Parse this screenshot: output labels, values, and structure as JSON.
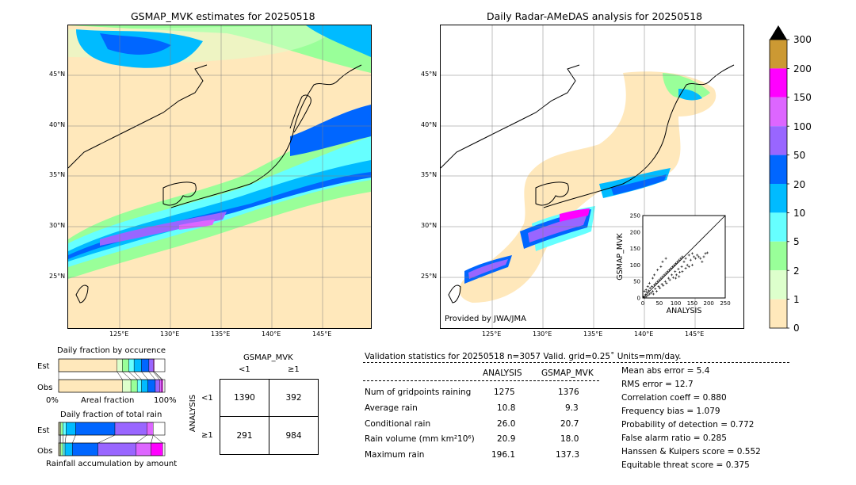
{
  "left_map": {
    "title": "GSMAP_MVK estimates for 20250518",
    "lat_labels": [
      "45°N",
      "40°N",
      "35°N",
      "30°N",
      "25°N"
    ],
    "lon_labels": [
      "125°E",
      "130°E",
      "135°E",
      "140°E",
      "145°E"
    ]
  },
  "right_map": {
    "title": "Daily Radar-AMeDAS analysis for 20250518",
    "lat_labels": [
      "45°N",
      "40°N",
      "35°N",
      "30°N",
      "25°N"
    ],
    "lon_labels": [
      "125°E",
      "130°E",
      "135°E",
      "140°E",
      "145°E"
    ],
    "credit": "Provided by JWA/JMA"
  },
  "colorbar": {
    "ticks": [
      "300",
      "200",
      "150",
      "100",
      "50",
      "20",
      "10",
      "5",
      "2",
      "1",
      "0"
    ],
    "colors": [
      "#cc9933",
      "#ff00ff",
      "#dd66ff",
      "#9966ff",
      "#0066ff",
      "#00bbff",
      "#66ffff",
      "#99ff99",
      "#ddffcc",
      "#ffe8bb"
    ]
  },
  "chart_data": [
    {
      "type": "scatter",
      "xlabel": "ANALYSIS",
      "ylabel": "GSMAP_MVK",
      "xlim": [
        0,
        250
      ],
      "ylim": [
        0,
        250
      ],
      "xticks": [
        "0",
        "25",
        "50",
        "75",
        "100",
        "125",
        "150",
        "175",
        "200",
        "225",
        "250"
      ],
      "yticks": [
        "0",
        "25",
        "50",
        "75",
        "100",
        "125",
        "150",
        "175",
        "200",
        "225",
        "250"
      ],
      "points": [
        [
          2,
          3
        ],
        [
          5,
          1
        ],
        [
          8,
          10
        ],
        [
          10,
          4
        ],
        [
          12,
          18
        ],
        [
          15,
          8
        ],
        [
          18,
          22
        ],
        [
          20,
          12
        ],
        [
          22,
          30
        ],
        [
          25,
          15
        ],
        [
          28,
          35
        ],
        [
          30,
          20
        ],
        [
          32,
          12
        ],
        [
          35,
          40
        ],
        [
          38,
          28
        ],
        [
          40,
          45
        ],
        [
          42,
          20
        ],
        [
          45,
          50
        ],
        [
          48,
          35
        ],
        [
          50,
          55
        ],
        [
          52,
          30
        ],
        [
          55,
          60
        ],
        [
          58,
          42
        ],
        [
          60,
          65
        ],
        [
          62,
          38
        ],
        [
          65,
          70
        ],
        [
          68,
          50
        ],
        [
          70,
          75
        ],
        [
          72,
          45
        ],
        [
          75,
          80
        ],
        [
          78,
          60
        ],
        [
          80,
          85
        ],
        [
          82,
          55
        ],
        [
          85,
          90
        ],
        [
          88,
          70
        ],
        [
          90,
          95
        ],
        [
          92,
          62
        ],
        [
          95,
          100
        ],
        [
          98,
          80
        ],
        [
          100,
          105
        ],
        [
          102,
          70
        ],
        [
          105,
          110
        ],
        [
          108,
          88
        ],
        [
          110,
          115
        ],
        [
          112,
          78
        ],
        [
          115,
          120
        ],
        [
          118,
          95
        ],
        [
          120,
          125
        ],
        [
          125,
          110
        ],
        [
          130,
          120
        ],
        [
          135,
          100
        ],
        [
          140,
          130
        ],
        [
          145,
          115
        ],
        [
          150,
          135
        ],
        [
          155,
          125
        ],
        [
          160,
          120
        ],
        [
          165,
          130
        ],
        [
          170,
          125
        ],
        [
          175,
          120
        ],
        [
          180,
          110
        ],
        [
          185,
          125
        ],
        [
          190,
          135
        ],
        [
          196,
          137
        ],
        [
          60,
          110
        ],
        [
          70,
          120
        ],
        [
          45,
          85
        ],
        [
          55,
          95
        ],
        [
          35,
          70
        ],
        [
          30,
          60
        ],
        [
          20,
          45
        ],
        [
          15,
          35
        ],
        [
          10,
          25
        ],
        [
          5,
          20
        ],
        [
          100,
          60
        ],
        [
          110,
          65
        ],
        [
          120,
          80
        ],
        [
          130,
          90
        ],
        [
          140,
          95
        ],
        [
          150,
          100
        ]
      ]
    },
    {
      "type": "bar",
      "title": "Daily fraction by occurence",
      "categories": [
        "Est",
        "Obs"
      ],
      "xlabels": [
        "0%",
        "Areal fraction",
        "100%"
      ],
      "series": [
        {
          "color": "#ffe8bb",
          "values": [
            0.55,
            0.6
          ]
        },
        {
          "color": "#ddffcc",
          "values": [
            0.05,
            0.08
          ]
        },
        {
          "color": "#99ff99",
          "values": [
            0.06,
            0.06
          ]
        },
        {
          "color": "#66ffff",
          "values": [
            0.05,
            0.04
          ]
        },
        {
          "color": "#00bbff",
          "values": [
            0.07,
            0.06
          ]
        },
        {
          "color": "#0066ff",
          "values": [
            0.07,
            0.07
          ]
        },
        {
          "color": "#9966ff",
          "values": [
            0.04,
            0.04
          ]
        },
        {
          "color": "#dd66ff",
          "values": [
            0.01,
            0.02
          ]
        },
        {
          "color": "#ff00ff",
          "values": [
            0.0,
            0.01
          ]
        }
      ]
    },
    {
      "type": "bar",
      "title": "Daily fraction of total rain",
      "categories": [
        "Est",
        "Obs"
      ],
      "xlabels": [
        "Rainfall accumulation by amount"
      ],
      "series": [
        {
          "color": "#ffe8bb",
          "values": [
            0.01,
            0.01
          ]
        },
        {
          "color": "#ddffcc",
          "values": [
            0.01,
            0.01
          ]
        },
        {
          "color": "#99ff99",
          "values": [
            0.02,
            0.02
          ]
        },
        {
          "color": "#66ffff",
          "values": [
            0.03,
            0.02
          ]
        },
        {
          "color": "#00bbff",
          "values": [
            0.09,
            0.07
          ]
        },
        {
          "color": "#0066ff",
          "values": [
            0.37,
            0.24
          ]
        },
        {
          "color": "#9966ff",
          "values": [
            0.3,
            0.36
          ]
        },
        {
          "color": "#dd66ff",
          "values": [
            0.06,
            0.14
          ]
        },
        {
          "color": "#ff00ff",
          "values": [
            0.0,
            0.11
          ]
        }
      ]
    }
  ],
  "contingency": {
    "title": "GSMAP_MVK",
    "col_headers": [
      "<1",
      "≥1"
    ],
    "row_label": "ANALYSIS",
    "row_headers": [
      "<1",
      "≥1"
    ],
    "cells": [
      [
        "1390",
        "392"
      ],
      [
        "291",
        "984"
      ]
    ]
  },
  "validation": {
    "header": "Validation statistics for 20250518  n=3057 Valid. grid=0.25˚ Units=mm/day.",
    "col_analysis": "ANALYSIS",
    "col_gsmap": "GSMAP_MVK",
    "rows": [
      {
        "label": "Num of gridpoints raining",
        "analysis": "1275",
        "gsmap": "1376"
      },
      {
        "label": "Average rain",
        "analysis": "10.8",
        "gsmap": "9.3"
      },
      {
        "label": "Conditional rain",
        "analysis": "26.0",
        "gsmap": "20.7"
      },
      {
        "label": "Rain volume (mm km²10⁶)",
        "analysis": "20.9",
        "gsmap": "18.0"
      },
      {
        "label": "Maximum rain",
        "analysis": "196.1",
        "gsmap": "137.3"
      }
    ],
    "scores": [
      "Mean abs error =    5.4",
      "RMS error =   12.7",
      "Correlation coeff =  0.880",
      "Frequency bias =  1.079",
      "Probability of detection =  0.772",
      "False alarm ratio =  0.285",
      "Hanssen & Kuipers score =  0.552",
      "Equitable threat score =  0.375"
    ]
  }
}
